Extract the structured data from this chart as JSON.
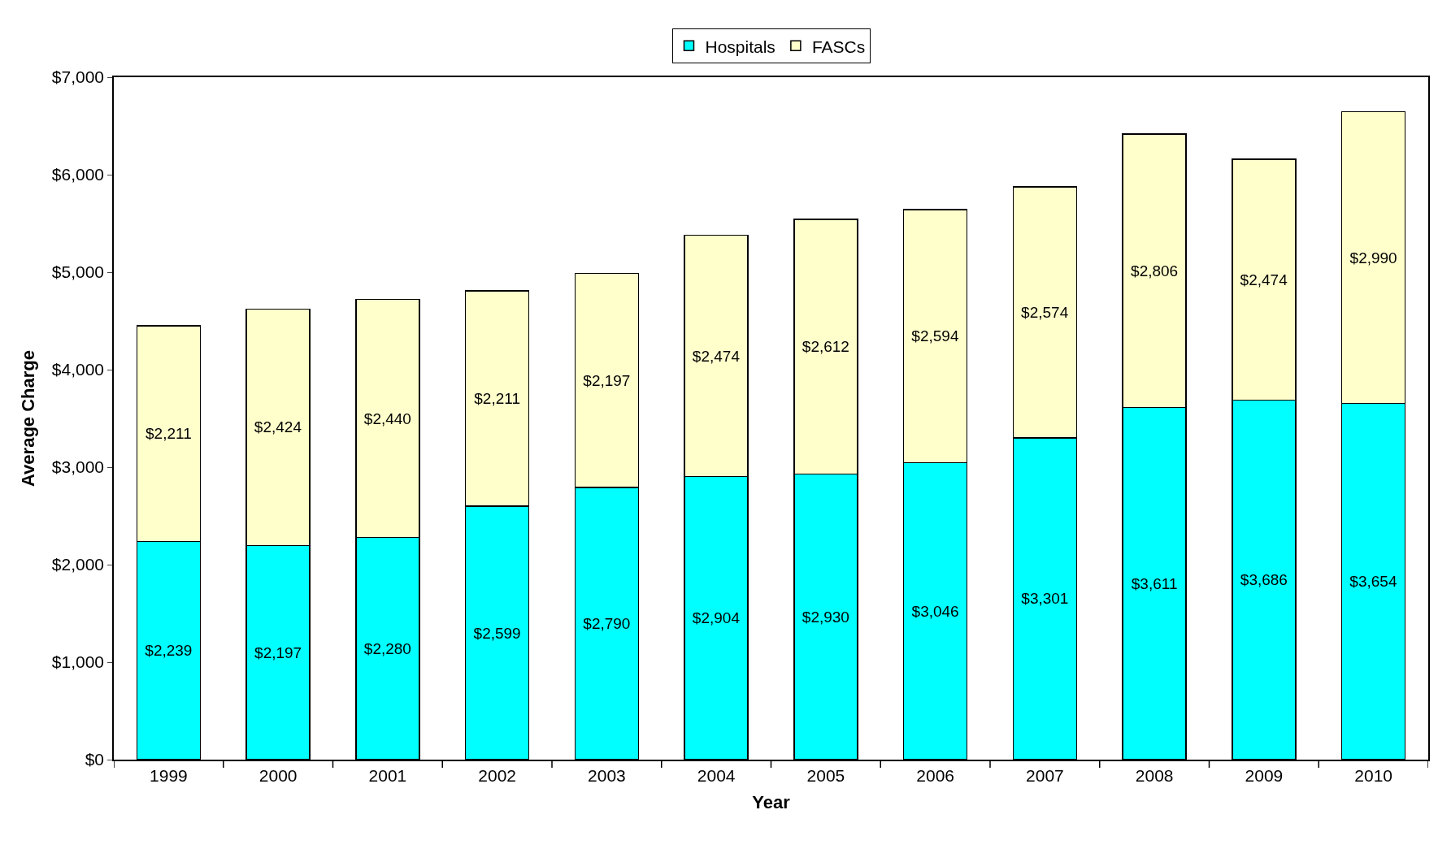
{
  "chart_data": {
    "type": "bar",
    "stacked": true,
    "xlabel": "Year",
    "ylabel": "Average Charge",
    "categories": [
      "1999",
      "2000",
      "2001",
      "2002",
      "2003",
      "2004",
      "2005",
      "2006",
      "2007",
      "2008",
      "2009",
      "2010"
    ],
    "series": [
      {
        "name": "Hospitals",
        "color": "#00ffff",
        "values": [
          2239,
          2197,
          2280,
          2599,
          2790,
          2904,
          2930,
          3046,
          3301,
          3611,
          3686,
          3654
        ],
        "value_labels": [
          "$2,239",
          "$2,197",
          "$2,280",
          "$2,599",
          "$2,790",
          "$2,904",
          "$2,930",
          "$3,046",
          "$3,301",
          "$3,611",
          "$3,686",
          "$3,654"
        ]
      },
      {
        "name": "FASCs",
        "color": "#ffffcc",
        "values": [
          2211,
          2424,
          2440,
          2211,
          2197,
          2474,
          2612,
          2594,
          2574,
          2806,
          2474,
          2990
        ],
        "value_labels": [
          "$2,211",
          "$2,424",
          "$2,440",
          "$2,211",
          "$2,197",
          "$2,474",
          "$2,612",
          "$2,594",
          "$2,574",
          "$2,806",
          "$2,474",
          "$2,990"
        ]
      }
    ],
    "ylim": [
      0,
      7000
    ],
    "yticks": [
      {
        "value": 0,
        "label": "$0"
      },
      {
        "value": 1000,
        "label": "$1,000"
      },
      {
        "value": 2000,
        "label": "$2,000"
      },
      {
        "value": 3000,
        "label": "$3,000"
      },
      {
        "value": 4000,
        "label": "$4,000"
      },
      {
        "value": 5000,
        "label": "$5,000"
      },
      {
        "value": 6000,
        "label": "$6,000"
      },
      {
        "value": 7000,
        "label": "$7,000"
      }
    ],
    "legend": "top"
  }
}
